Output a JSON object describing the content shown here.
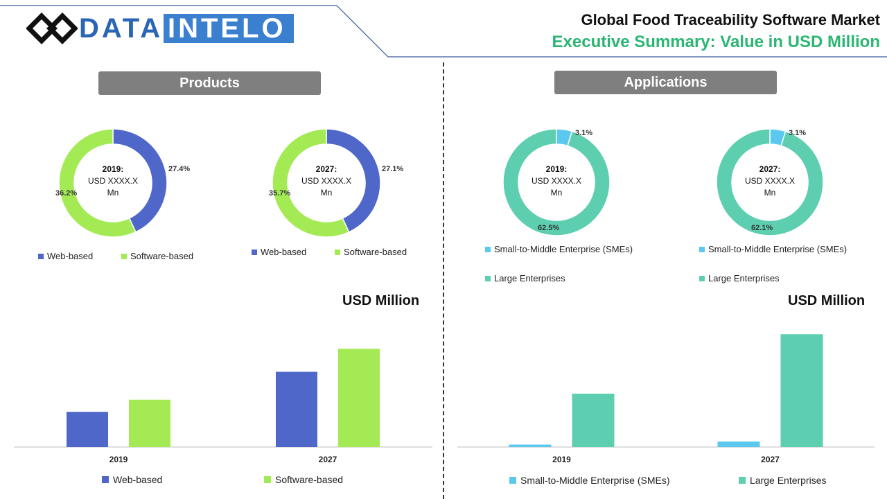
{
  "brand": {
    "part1": "DATA",
    "part2": "INTELO"
  },
  "header": {
    "title": "Global Food Traceability Software Market",
    "subtitle": "Executive Summary: Value in USD Million"
  },
  "sections": {
    "products": "Products",
    "applications": "Applications"
  },
  "usd_label": "USD Million",
  "colors": {
    "web": "#4f67c9",
    "software": "#a4ea55",
    "sme": "#5bc8ef",
    "large": "#5dcfb0",
    "gray_header": "#7f7f7f",
    "accent_green": "#2bb673",
    "brand_blue": "#3b7fcf"
  },
  "chart_data": [
    {
      "id": "products-donut-2019",
      "type": "pie",
      "center": {
        "line1": "2019:",
        "line2": "USD XXXX.X",
        "line3": "Mn"
      },
      "slices": [
        {
          "name": "Web-based",
          "label": "27.4%",
          "value": 27.4,
          "color": "#4f67c9"
        },
        {
          "name": "Software-based",
          "label": "36.2%",
          "value": 36.2,
          "color": "#a4ea55"
        }
      ],
      "legend": [
        "Web-based",
        "Software-based"
      ]
    },
    {
      "id": "products-donut-2027",
      "type": "pie",
      "center": {
        "line1": "2027:",
        "line2": "USD XXXX.X",
        "line3": "Mn"
      },
      "slices": [
        {
          "name": "Web-based",
          "label": "27.1%",
          "value": 27.1,
          "color": "#4f67c9"
        },
        {
          "name": "Software-based",
          "label": "35.7%",
          "value": 35.7,
          "color": "#a4ea55"
        }
      ],
      "legend": [
        "Web-based",
        "Software-based"
      ]
    },
    {
      "id": "applications-donut-2019",
      "type": "pie",
      "center": {
        "line1": "2019:",
        "line2": "USD XXXX.X",
        "line3": "Mn"
      },
      "slices": [
        {
          "name": "Small-to-Middle Enterprise (SMEs)",
          "label": "3.1%",
          "value": 3.1,
          "color": "#5bc8ef"
        },
        {
          "name": "Large Enterprises",
          "label": "62.5%",
          "value": 62.5,
          "color": "#5dcfb0"
        }
      ],
      "legend": [
        "Small-to-Middle Enterprise (SMEs)",
        "Large Enterprises"
      ]
    },
    {
      "id": "applications-donut-2027",
      "type": "pie",
      "center": {
        "line1": "2027:",
        "line2": "USD XXXX.X",
        "line3": "Mn"
      },
      "slices": [
        {
          "name": "Small-to-Middle Enterprise (SMEs)",
          "label": "3.1%",
          "value": 3.1,
          "color": "#5bc8ef"
        },
        {
          "name": "Large Enterprises",
          "label": "62.1%",
          "value": 62.1,
          "color": "#5dcfb0"
        }
      ],
      "legend": [
        "Small-to-Middle Enterprise (SMEs)",
        "Large Enterprises"
      ]
    },
    {
      "id": "products-bar",
      "type": "bar",
      "categories": [
        "2019",
        "2027"
      ],
      "series": [
        {
          "name": "Web-based",
          "values": [
            29,
            62
          ],
          "color": "#4f67c9"
        },
        {
          "name": "Software-based",
          "values": [
            39,
            81
          ],
          "color": "#a4ea55"
        }
      ],
      "ylim": [
        0,
        100
      ],
      "ylabel": "USD Million"
    },
    {
      "id": "applications-bar",
      "type": "bar",
      "categories": [
        "2019",
        "2027"
      ],
      "series": [
        {
          "name": "Small-to-Middle Enterprise (SMEs)",
          "values": [
            2,
            4.5
          ],
          "color": "#5bc8ef"
        },
        {
          "name": "Large Enterprises",
          "values": [
            44,
            93
          ],
          "color": "#5dcfb0"
        }
      ],
      "ylim": [
        0,
        100
      ],
      "ylabel": "USD Million"
    }
  ]
}
